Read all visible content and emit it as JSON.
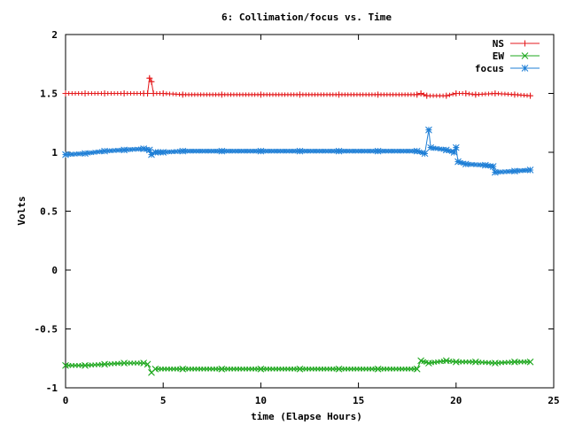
{
  "chart_data": {
    "type": "line",
    "title": "6: Collimation/focus vs. Time",
    "xlabel": "time (Elapse Hours)",
    "ylabel": "Volts",
    "xlim": [
      0,
      25
    ],
    "ylim": [
      -1,
      2
    ],
    "x_ticks": [
      {
        "value": 0,
        "label": "0"
      },
      {
        "value": 5,
        "label": "5"
      },
      {
        "value": 10,
        "label": "10"
      },
      {
        "value": 15,
        "label": "15"
      },
      {
        "value": 20,
        "label": "20"
      },
      {
        "value": 25,
        "label": "25"
      }
    ],
    "y_ticks": [
      {
        "value": -1,
        "label": "-1"
      },
      {
        "value": -0.5,
        "label": "-0.5"
      },
      {
        "value": 0,
        "label": "0"
      },
      {
        "value": 0.5,
        "label": "0.5"
      },
      {
        "value": 1,
        "label": "1"
      },
      {
        "value": 1.5,
        "label": "1.5"
      },
      {
        "value": 2,
        "label": "2"
      }
    ],
    "grid": false,
    "legend_position": "top-right",
    "series": [
      {
        "name": "NS",
        "color": "#e41a1c",
        "marker": "plus",
        "points": [
          [
            0.0,
            1.5
          ],
          [
            1.0,
            1.5
          ],
          [
            2.0,
            1.5
          ],
          [
            3.0,
            1.5
          ],
          [
            4.0,
            1.5
          ],
          [
            4.2,
            1.5
          ],
          [
            4.3,
            1.63
          ],
          [
            4.4,
            1.6
          ],
          [
            4.5,
            1.5
          ],
          [
            5.0,
            1.5
          ],
          [
            6.0,
            1.49
          ],
          [
            8.0,
            1.49
          ],
          [
            10.0,
            1.49
          ],
          [
            12.0,
            1.49
          ],
          [
            14.0,
            1.49
          ],
          [
            16.0,
            1.49
          ],
          [
            18.0,
            1.49
          ],
          [
            18.2,
            1.5
          ],
          [
            18.5,
            1.48
          ],
          [
            19.5,
            1.48
          ],
          [
            20.0,
            1.5
          ],
          [
            20.5,
            1.5
          ],
          [
            21.0,
            1.49
          ],
          [
            22.0,
            1.5
          ],
          [
            23.0,
            1.49
          ],
          [
            23.8,
            1.48
          ]
        ]
      },
      {
        "name": "EW",
        "color": "#1fa81f",
        "marker": "cross",
        "points": [
          [
            0.0,
            -0.81
          ],
          [
            1.0,
            -0.81
          ],
          [
            2.0,
            -0.8
          ],
          [
            3.0,
            -0.79
          ],
          [
            4.0,
            -0.79
          ],
          [
            4.2,
            -0.8
          ],
          [
            4.4,
            -0.87
          ],
          [
            4.6,
            -0.84
          ],
          [
            6.0,
            -0.84
          ],
          [
            8.0,
            -0.84
          ],
          [
            10.0,
            -0.84
          ],
          [
            12.0,
            -0.84
          ],
          [
            14.0,
            -0.84
          ],
          [
            16.0,
            -0.84
          ],
          [
            18.0,
            -0.84
          ],
          [
            18.2,
            -0.77
          ],
          [
            18.6,
            -0.79
          ],
          [
            19.5,
            -0.77
          ],
          [
            20.0,
            -0.78
          ],
          [
            21.0,
            -0.78
          ],
          [
            22.0,
            -0.79
          ],
          [
            23.0,
            -0.78
          ],
          [
            23.8,
            -0.78
          ]
        ]
      },
      {
        "name": "focus",
        "color": "#1f7fd6",
        "marker": "star",
        "points": [
          [
            0.0,
            0.98
          ],
          [
            1.0,
            0.99
          ],
          [
            2.0,
            1.01
          ],
          [
            3.0,
            1.02
          ],
          [
            4.0,
            1.03
          ],
          [
            4.3,
            1.02
          ],
          [
            4.4,
            0.98
          ],
          [
            4.6,
            1.0
          ],
          [
            5.0,
            1.0
          ],
          [
            6.0,
            1.01
          ],
          [
            8.0,
            1.01
          ],
          [
            10.0,
            1.01
          ],
          [
            12.0,
            1.01
          ],
          [
            14.0,
            1.01
          ],
          [
            16.0,
            1.01
          ],
          [
            18.0,
            1.01
          ],
          [
            18.4,
            0.99
          ],
          [
            18.6,
            1.19
          ],
          [
            18.7,
            1.04
          ],
          [
            19.5,
            1.02
          ],
          [
            19.9,
            1.0
          ],
          [
            20.0,
            1.04
          ],
          [
            20.1,
            0.92
          ],
          [
            20.5,
            0.9
          ],
          [
            21.5,
            0.89
          ],
          [
            21.9,
            0.88
          ],
          [
            22.0,
            0.83
          ],
          [
            23.0,
            0.84
          ],
          [
            23.8,
            0.85
          ]
        ]
      }
    ]
  }
}
